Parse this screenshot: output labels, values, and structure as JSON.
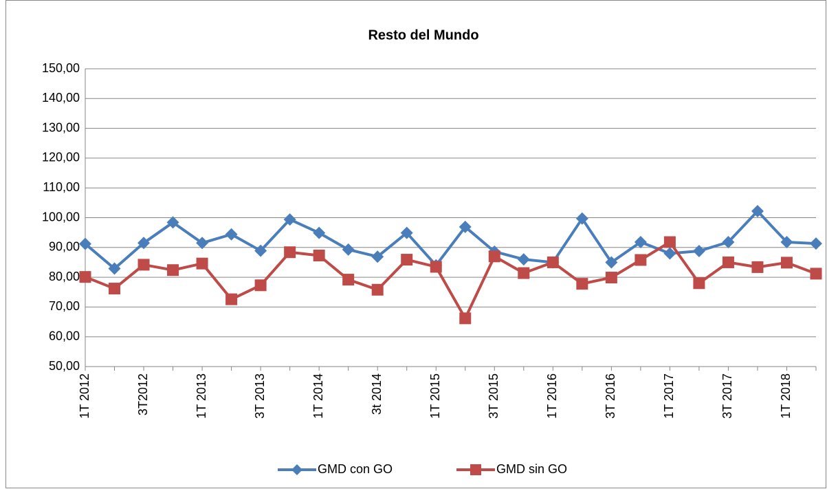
{
  "chart_data": {
    "type": "line",
    "title": "Resto del Mundo",
    "categories": [
      "1T 2012",
      null,
      "3T2012",
      null,
      "1T 2013",
      null,
      "3T 2013",
      null,
      "1T 2014",
      null,
      "3t 2014",
      null,
      "1T 2015",
      null,
      "3T 2015",
      null,
      "1T 2016",
      null,
      "3T 2016",
      null,
      "1T 2017",
      null,
      "3T 2017",
      null,
      "1T 2018",
      null
    ],
    "series": [
      {
        "name": "GMD con GO",
        "color": "#4a7ebb",
        "marker": "diamond",
        "values": [
          91.2,
          82.9,
          91.5,
          98.4,
          91.5,
          94.4,
          88.9,
          99.4,
          94.9,
          89.3,
          86.9,
          94.9,
          84.0,
          96.9,
          88.6,
          86.0,
          85.0,
          99.7,
          85.0,
          91.8,
          88.0,
          88.8,
          91.8,
          102.2,
          91.8,
          91.3
        ]
      },
      {
        "name": "GMD sin GO",
        "color": "#be4b48",
        "marker": "square",
        "values": [
          80.1,
          76.2,
          84.2,
          82.4,
          84.6,
          72.6,
          77.3,
          88.4,
          87.3,
          79.2,
          75.8,
          85.9,
          83.5,
          66.2,
          87.0,
          81.4,
          85.0,
          77.8,
          79.9,
          85.8,
          91.8,
          78.0,
          85.0,
          83.4,
          84.9,
          81.2
        ]
      }
    ],
    "ylim": [
      50,
      150
    ],
    "yticks": [
      {
        "value": 50,
        "label": "50,00"
      },
      {
        "value": 60,
        "label": "60,00"
      },
      {
        "value": 70,
        "label": "70,00"
      },
      {
        "value": 80,
        "label": "80,00"
      },
      {
        "value": 90,
        "label": "90,00"
      },
      {
        "value": 100,
        "label": "100,00"
      },
      {
        "value": 110,
        "label": "110,00"
      },
      {
        "value": 120,
        "label": "120,00"
      },
      {
        "value": 130,
        "label": "130,00"
      },
      {
        "value": 140,
        "label": "140,00"
      },
      {
        "value": 150,
        "label": "150,00"
      }
    ],
    "grid": true,
    "legend": "bottom"
  }
}
